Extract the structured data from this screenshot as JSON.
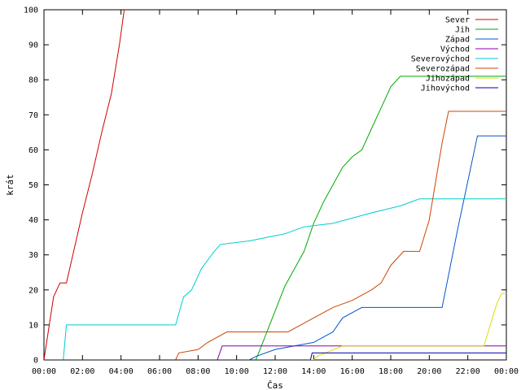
{
  "chart_data": {
    "type": "line",
    "title": "",
    "xlabel": "Čas",
    "ylabel": "krát",
    "xlim": [
      "00:00",
      "24:00"
    ],
    "ylim": [
      0,
      100
    ],
    "x_ticks": [
      "00:00",
      "02:00",
      "04:00",
      "06:00",
      "08:00",
      "10:00",
      "12:00",
      "14:00",
      "16:00",
      "18:00",
      "20:00",
      "22:00",
      "00:00"
    ],
    "y_ticks": [
      "0",
      "10",
      "20",
      "30",
      "40",
      "50",
      "60",
      "70",
      "80",
      "90",
      "100"
    ],
    "grid": false,
    "legend_position": "top-right",
    "series": [
      {
        "name": "Sever",
        "color": "#cc0000",
        "points": [
          [
            "00:00",
            0
          ],
          [
            "00:30",
            18
          ],
          [
            "00:50",
            22
          ],
          [
            "01:10",
            22
          ],
          [
            "01:30",
            30
          ],
          [
            "02:00",
            42
          ],
          [
            "02:30",
            53
          ],
          [
            "03:00",
            65
          ],
          [
            "03:30",
            76
          ],
          [
            "03:55",
            90
          ],
          [
            "04:10",
            100
          ]
        ]
      },
      {
        "name": "Jih",
        "color": "#00aa00",
        "points": [
          [
            "00:00",
            0
          ],
          [
            "11:00",
            0
          ],
          [
            "11:30",
            7
          ],
          [
            "12:00",
            14
          ],
          [
            "12:30",
            21
          ],
          [
            "13:00",
            26
          ],
          [
            "13:30",
            31
          ],
          [
            "14:00",
            39
          ],
          [
            "14:30",
            45
          ],
          [
            "15:00",
            50
          ],
          [
            "15:30",
            55
          ],
          [
            "16:00",
            58
          ],
          [
            "16:30",
            60
          ],
          [
            "17:00",
            66
          ],
          [
            "17:30",
            72
          ],
          [
            "18:00",
            78
          ],
          [
            "18:30",
            81
          ],
          [
            "19:00",
            81
          ],
          [
            "24:00",
            81
          ]
        ]
      },
      {
        "name": "Západ",
        "color": "#0055cc",
        "points": [
          [
            "00:00",
            0
          ],
          [
            "10:40",
            0
          ],
          [
            "11:00",
            1
          ],
          [
            "12:00",
            3
          ],
          [
            "13:00",
            4
          ],
          [
            "14:00",
            5
          ],
          [
            "15:00",
            8
          ],
          [
            "15:30",
            12
          ],
          [
            "16:30",
            15
          ],
          [
            "20:40",
            15
          ],
          [
            "21:30",
            38
          ],
          [
            "22:30",
            64
          ],
          [
            "24:00",
            64
          ]
        ]
      },
      {
        "name": "Východ",
        "color": "#8800aa",
        "points": [
          [
            "00:00",
            0
          ],
          [
            "09:00",
            0
          ],
          [
            "09:15",
            4
          ],
          [
            "24:00",
            4
          ]
        ]
      },
      {
        "name": "Severovýchod",
        "color": "#00cccc",
        "points": [
          [
            "00:00",
            0
          ],
          [
            "01:00",
            0
          ],
          [
            "01:10",
            10
          ],
          [
            "06:50",
            10
          ],
          [
            "07:15",
            18
          ],
          [
            "07:40",
            20
          ],
          [
            "08:10",
            26
          ],
          [
            "08:50",
            31
          ],
          [
            "09:10",
            33
          ],
          [
            "10:40",
            34
          ],
          [
            "12:30",
            36
          ],
          [
            "13:30",
            38
          ],
          [
            "15:00",
            39
          ],
          [
            "17:00",
            42
          ],
          [
            "18:30",
            44
          ],
          [
            "19:30",
            46
          ],
          [
            "24:00",
            46
          ]
        ]
      },
      {
        "name": "Severozápad",
        "color": "#cc4400",
        "points": [
          [
            "00:00",
            0
          ],
          [
            "06:50",
            0
          ],
          [
            "07:00",
            2
          ],
          [
            "08:00",
            3
          ],
          [
            "08:30",
            5
          ],
          [
            "09:30",
            8
          ],
          [
            "12:40",
            8
          ],
          [
            "13:20",
            10
          ],
          [
            "14:00",
            12
          ],
          [
            "15:00",
            15
          ],
          [
            "16:00",
            17
          ],
          [
            "17:00",
            20
          ],
          [
            "17:30",
            22
          ],
          [
            "18:00",
            27
          ],
          [
            "18:40",
            31
          ],
          [
            "19:30",
            31
          ],
          [
            "20:00",
            40
          ],
          [
            "20:40",
            62
          ],
          [
            "21:00",
            71
          ],
          [
            "24:00",
            71
          ]
        ]
      },
      {
        "name": "Jihozápad",
        "color": "#dddd00",
        "points": [
          [
            "00:00",
            0
          ],
          [
            "14:00",
            0
          ],
          [
            "14:10",
            1
          ],
          [
            "15:30",
            4
          ],
          [
            "22:50",
            4
          ],
          [
            "23:30",
            16
          ],
          [
            "23:45",
            19
          ],
          [
            "24:00",
            19
          ]
        ]
      },
      {
        "name": "Jihovýchod",
        "color": "#0000aa",
        "points": [
          [
            "00:00",
            0
          ],
          [
            "13:50",
            0
          ],
          [
            "13:55",
            2
          ],
          [
            "24:00",
            2
          ]
        ]
      }
    ]
  }
}
